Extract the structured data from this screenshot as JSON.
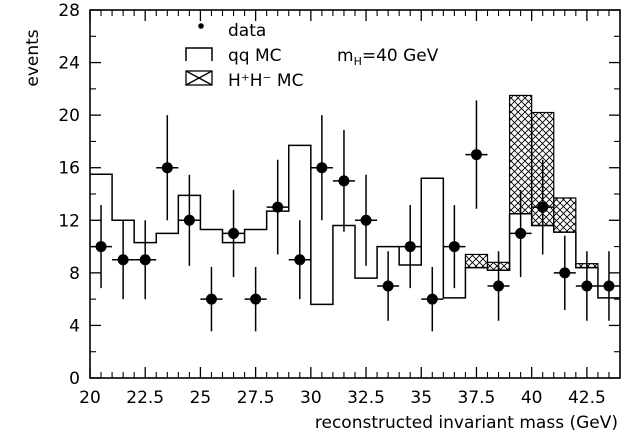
{
  "chart_data": {
    "type": "histogram",
    "xlabel": "reconstructed invariant  mass (GeV)",
    "ylabel": "events",
    "xlim": [
      20,
      44
    ],
    "ylim": [
      0,
      28
    ],
    "x_ticks": [
      20,
      22.5,
      25,
      27.5,
      30,
      32.5,
      35,
      37.5,
      40,
      42.5
    ],
    "x_tick_labels": [
      "20",
      "22.5",
      "25",
      "27.5",
      "30",
      "32.5",
      "35",
      "37.5",
      "40",
      "42.5"
    ],
    "y_ticks": [
      0,
      4,
      8,
      12,
      16,
      20,
      24,
      28
    ],
    "y_tick_labels": [
      "0",
      "4",
      "8",
      "12",
      "16",
      "20",
      "24",
      "28"
    ],
    "bin_edges": [
      20,
      21,
      22,
      23,
      24,
      25,
      26,
      27,
      28,
      29,
      30,
      31,
      32,
      33,
      34,
      35,
      36,
      37,
      38,
      39,
      40,
      41,
      42,
      43,
      44
    ],
    "legend": {
      "data": "data",
      "qq": "qq MC",
      "hh": "H⁺H⁻ MC"
    },
    "annotation": {
      "text_main": "m",
      "text_sub": "H",
      "text_rest": "=40 GeV"
    },
    "series": [
      {
        "name": "qq MC",
        "kind": "step",
        "values": [
          15.5,
          12,
          10.3,
          11,
          13.9,
          11.3,
          10.3,
          11.3,
          12.7,
          17.7,
          5.6,
          11.6,
          7.6,
          10,
          8.6,
          15.2,
          6.1,
          8.4,
          8.2,
          12.5,
          11.6,
          11.1,
          8.4,
          6.1
        ]
      },
      {
        "name": "H⁺H⁻ MC",
        "kind": "hatched-stacked",
        "values": [
          0,
          0,
          0,
          0,
          0,
          0,
          0,
          0,
          0,
          0,
          0,
          0,
          0,
          0,
          0,
          0,
          0,
          1,
          0.6,
          9,
          8.6,
          2.6,
          0.3,
          0
        ]
      },
      {
        "name": "data",
        "kind": "points",
        "x": [
          20.5,
          21.5,
          22.5,
          23.5,
          24.5,
          25.5,
          26.5,
          27.5,
          28.5,
          29.5,
          30.5,
          31.5,
          32.5,
          33.5,
          34.5,
          35.5,
          36.5,
          37.5,
          38.5,
          39.5,
          40.5,
          41.5,
          42.5,
          43.5
        ],
        "y": [
          10,
          9,
          9,
          16,
          12,
          6,
          11,
          6,
          13,
          9,
          16,
          15,
          12,
          7,
          10,
          6,
          10,
          17,
          7,
          11,
          13,
          8,
          7,
          7
        ]
      }
    ]
  }
}
